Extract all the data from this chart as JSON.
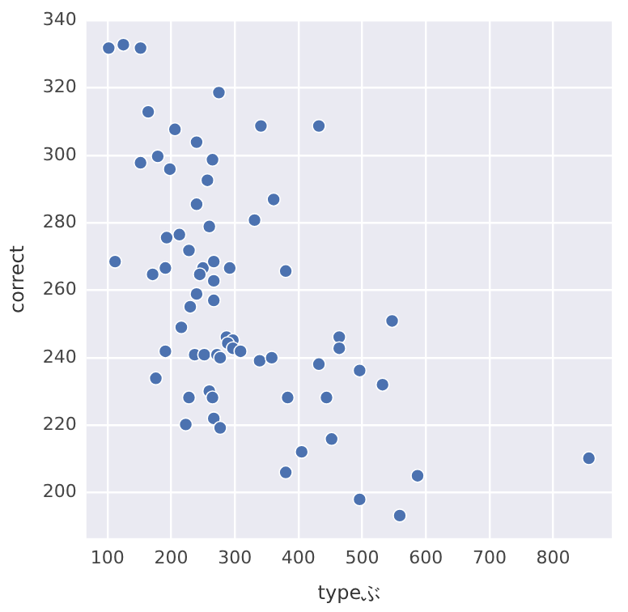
{
  "chart_data": {
    "type": "scatter",
    "xlabel": "typeぶ",
    "ylabel": "correct",
    "color": "#4c72b0",
    "marker": "circle",
    "grid": true,
    "legend": false,
    "xlim": [
      67,
      892
    ],
    "ylim": [
      186.5,
      340
    ],
    "xticks": [
      100,
      200,
      300,
      400,
      500,
      600,
      700,
      800
    ],
    "yticks": [
      200,
      220,
      240,
      260,
      280,
      300,
      320,
      340
    ],
    "x": [
      102,
      125,
      152,
      275,
      164,
      206,
      341,
      432,
      240,
      152,
      179,
      198,
      265,
      257,
      240,
      361,
      331,
      260,
      193,
      213,
      228,
      112,
      191,
      250,
      267,
      292,
      171,
      245,
      267,
      380,
      240,
      267,
      230,
      216,
      191,
      237,
      252,
      272,
      277,
      287,
      297,
      289,
      297,
      309,
      339,
      358,
      176,
      260,
      265,
      228,
      383,
      267,
      223,
      277,
      405,
      380,
      444,
      432,
      464,
      464,
      452,
      496,
      496,
      547,
      532,
      856,
      587,
      559
    ],
    "values": [
      331.8,
      332.8,
      331.8,
      318.6,
      312.9,
      307.7,
      308.7,
      308.7,
      303.9,
      297.8,
      299.7,
      295.9,
      298.7,
      292.6,
      285.5,
      286.9,
      280.8,
      278.9,
      275.6,
      276.5,
      271.8,
      268.5,
      266.6,
      266.6,
      268.5,
      266.6,
      264.7,
      264.7,
      262.8,
      265.7,
      258.9,
      257,
      255.1,
      249,
      241.9,
      240.9,
      240.9,
      240.9,
      240,
      246.1,
      245.2,
      244.3,
      242.8,
      241.9,
      239.1,
      240,
      233.9,
      230.1,
      228.2,
      228.2,
      228.2,
      222,
      220.2,
      219.2,
      212.1,
      206,
      228.2,
      238.1,
      246.1,
      242.8,
      215.9,
      236.2,
      198,
      250.9,
      232,
      210.2,
      205,
      193.2
    ]
  }
}
